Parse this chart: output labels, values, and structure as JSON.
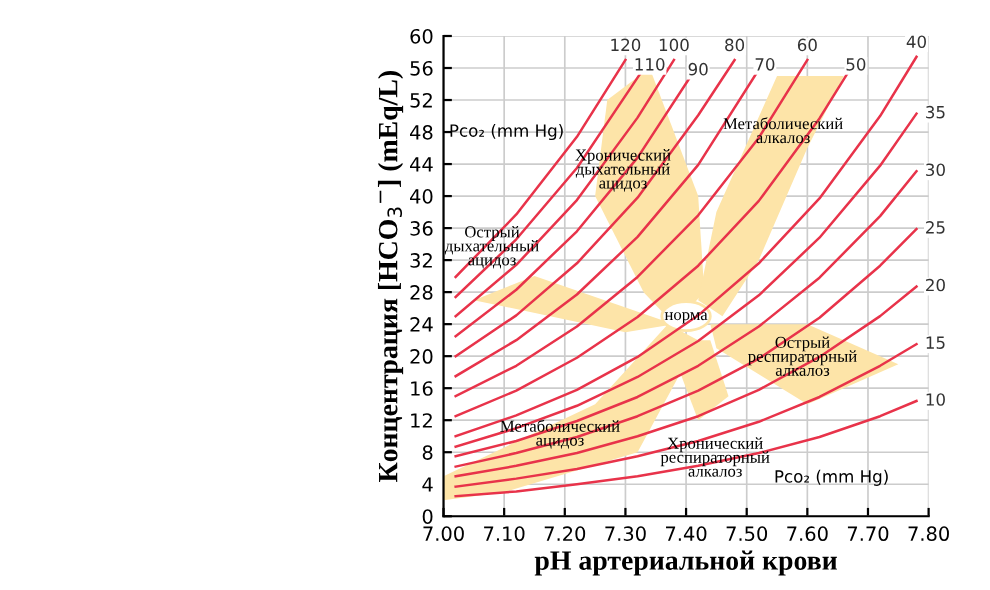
{
  "chart_data": {
    "type": "line",
    "xlabel": "pH артериальной крови",
    "ylabel": "Концентрация [HCO$_{3}$$^{−}$] (mEq/L)",
    "xlim": [
      7.0,
      7.8
    ],
    "xticks": [
      {
        "value": 7.0,
        "label": "7.00"
      },
      {
        "value": 7.1,
        "label": "7.10"
      },
      {
        "value": 7.2,
        "label": "7.20"
      },
      {
        "value": 7.3,
        "label": "7.30"
      },
      {
        "value": 7.4,
        "label": "7.40"
      },
      {
        "value": 7.5,
        "label": "7.50"
      },
      {
        "value": 7.6,
        "label": "7.60"
      },
      {
        "value": 7.7,
        "label": "7.70"
      },
      {
        "value": 7.8,
        "label": "7.80"
      }
    ],
    "ylim": [
      0,
      60
    ],
    "yticks": [
      0,
      4,
      8,
      12,
      16,
      20,
      24,
      28,
      32,
      36,
      40,
      44,
      48,
      52,
      56,
      60
    ],
    "grid": true,
    "legend": false,
    "marker": "none",
    "line_style": "solid",
    "series": [
      {
        "name": "120",
        "color": "#e8334a",
        "x": [
          7.02,
          7.12,
          7.22,
          7.3
        ],
        "values": [
          29.9,
          37.7,
          47.4,
          57.0
        ]
      },
      {
        "name": "110",
        "color": "#e8334a",
        "x": [
          7.02,
          7.12,
          7.22,
          7.32,
          7.34
        ],
        "values": [
          27.4,
          34.6,
          43.5,
          54.8,
          57.0
        ]
      },
      {
        "name": "100",
        "color": "#e8334a",
        "x": [
          7.02,
          7.12,
          7.22,
          7.32,
          7.38
        ],
        "values": [
          25.0,
          31.4,
          39.5,
          49.8,
          57.0
        ]
      },
      {
        "name": "90",
        "color": "#e8334a",
        "x": [
          7.02,
          7.12,
          7.22,
          7.32,
          7.42
        ],
        "values": [
          22.5,
          28.3,
          35.6,
          44.8,
          56.4
        ]
      },
      {
        "name": "80",
        "color": "#e8334a",
        "x": [
          7.02,
          7.12,
          7.22,
          7.32,
          7.42,
          7.48
        ],
        "values": [
          20.0,
          25.1,
          31.6,
          39.8,
          50.1,
          57.0
        ]
      },
      {
        "name": "70",
        "color": "#e8334a",
        "x": [
          7.02,
          7.12,
          7.22,
          7.32,
          7.42,
          7.53
        ],
        "values": [
          17.5,
          22.0,
          27.7,
          34.9,
          43.9,
          57.0
        ]
      },
      {
        "name": "60",
        "color": "#e8334a",
        "x": [
          7.02,
          7.12,
          7.22,
          7.32,
          7.42,
          7.52,
          7.6
        ],
        "values": [
          15.0,
          18.8,
          23.7,
          29.9,
          37.6,
          47.3,
          57.0
        ]
      },
      {
        "name": "50",
        "color": "#e8334a",
        "x": [
          7.02,
          7.12,
          7.22,
          7.32,
          7.42,
          7.52,
          7.62,
          7.68
        ],
        "values": [
          12.5,
          15.7,
          19.8,
          24.9,
          31.3,
          39.4,
          49.7,
          57.0
        ]
      },
      {
        "name": "40",
        "color": "#e8334a",
        "x": [
          7.02,
          7.12,
          7.22,
          7.32,
          7.42,
          7.52,
          7.62,
          7.72,
          7.78
        ],
        "values": [
          10.0,
          12.6,
          15.8,
          19.9,
          25.1,
          31.6,
          39.7,
          50.0,
          57.4
        ]
      },
      {
        "name": "35",
        "color": "#e8334a",
        "x": [
          7.02,
          7.12,
          7.22,
          7.32,
          7.42,
          7.52,
          7.62,
          7.72,
          7.78
        ],
        "values": [
          8.7,
          11.0,
          13.8,
          17.4,
          21.9,
          27.6,
          34.8,
          43.8,
          50.3
        ]
      },
      {
        "name": "30",
        "color": "#e8334a",
        "x": [
          7.02,
          7.12,
          7.22,
          7.32,
          7.42,
          7.52,
          7.62,
          7.72,
          7.78
        ],
        "values": [
          7.5,
          9.4,
          11.9,
          14.9,
          18.8,
          23.7,
          29.8,
          37.5,
          43.1
        ]
      },
      {
        "name": "25",
        "color": "#e8334a",
        "x": [
          7.02,
          7.12,
          7.22,
          7.32,
          7.42,
          7.52,
          7.62,
          7.72,
          7.78
        ],
        "values": [
          6.2,
          7.9,
          9.9,
          12.5,
          15.7,
          19.7,
          24.8,
          31.3,
          35.9
        ]
      },
      {
        "name": "20",
        "color": "#e8334a",
        "x": [
          7.02,
          7.12,
          7.22,
          7.32,
          7.42,
          7.52,
          7.62,
          7.72,
          7.78
        ],
        "values": [
          5.0,
          6.3,
          7.9,
          10.0,
          12.5,
          15.8,
          19.9,
          25.0,
          28.7
        ]
      },
      {
        "name": "15",
        "color": "#e8334a",
        "x": [
          7.02,
          7.12,
          7.22,
          7.32,
          7.42,
          7.52,
          7.62,
          7.72,
          7.78
        ],
        "values": [
          3.7,
          4.7,
          5.9,
          7.5,
          9.4,
          11.8,
          14.9,
          18.8,
          21.5
        ]
      },
      {
        "name": "10",
        "color": "#e8334a",
        "x": [
          7.02,
          7.12,
          7.22,
          7.32,
          7.42,
          7.52,
          7.62,
          7.72,
          7.78
        ],
        "values": [
          2.5,
          3.1,
          4.0,
          5.0,
          6.3,
          7.9,
          9.9,
          12.5,
          14.4
        ]
      }
    ],
    "annotations": [
      "норма",
      "Хронический\nдыхательный\nацидоз",
      "Метаболический\nалкалоз",
      "Острый\nдыхательный\nацидоз",
      "Острый\nреспираторный\nалкалоз",
      "Метаболический\nацидоз",
      "Хронический\nреспираторный\nалкалоз",
      "Pco₂ (mm Hg)",
      "Pco₂ (mm Hg)"
    ]
  }
}
